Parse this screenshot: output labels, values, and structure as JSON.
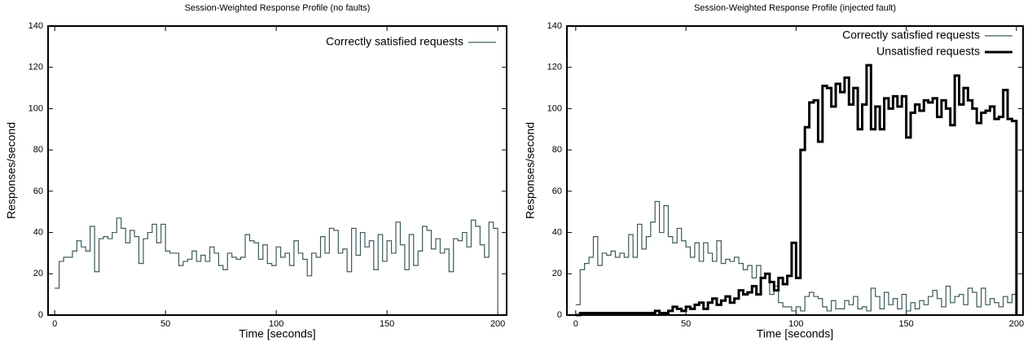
{
  "chart_data": [
    {
      "type": "line",
      "title": "Session-Weighted Response Profile (no faults)",
      "xlabel": "Time [seconds]",
      "ylabel": "Responses/second",
      "xlim": [
        -3,
        204
      ],
      "ylim": [
        0,
        140
      ],
      "xticks": [
        0,
        50,
        100,
        150,
        200
      ],
      "yticks": [
        0,
        20,
        40,
        60,
        80,
        100,
        120,
        140
      ],
      "legend": "upper right",
      "step": true,
      "x": [
        0,
        2,
        4,
        6,
        8,
        10,
        12,
        14,
        16,
        18,
        20,
        22,
        24,
        26,
        28,
        30,
        32,
        34,
        36,
        38,
        40,
        42,
        44,
        46,
        48,
        50,
        52,
        54,
        56,
        58,
        60,
        62,
        64,
        66,
        68,
        70,
        72,
        74,
        76,
        78,
        80,
        82,
        84,
        86,
        88,
        90,
        92,
        94,
        96,
        98,
        100,
        102,
        104,
        106,
        108,
        110,
        112,
        114,
        116,
        118,
        120,
        122,
        124,
        126,
        128,
        130,
        132,
        134,
        136,
        138,
        140,
        142,
        144,
        146,
        148,
        150,
        152,
        154,
        156,
        158,
        160,
        162,
        164,
        166,
        168,
        170,
        172,
        174,
        176,
        178,
        180,
        182,
        184,
        186,
        188,
        190,
        192,
        194,
        196,
        198,
        200
      ],
      "series": [
        {
          "name": "Correctly satisfied requests",
          "color": "#3d5a5a",
          "width": 1.2,
          "values": [
            13,
            26,
            28,
            28,
            31,
            36,
            33,
            31,
            43,
            21,
            37,
            38,
            37,
            40,
            47,
            42,
            35,
            41,
            38,
            25,
            37,
            40,
            44,
            35,
            44,
            31,
            30,
            30,
            24,
            26,
            27,
            31,
            26,
            29,
            26,
            33,
            30,
            24,
            22,
            30,
            28,
            27,
            28,
            39,
            36,
            35,
            27,
            34,
            25,
            24,
            33,
            28,
            30,
            24,
            36,
            30,
            27,
            19,
            30,
            28,
            38,
            30,
            42,
            41,
            30,
            32,
            21,
            42,
            29,
            40,
            33,
            36,
            22,
            39,
            26,
            36,
            30,
            45,
            34,
            22,
            39,
            24,
            31,
            43,
            41,
            32,
            37,
            30,
            32,
            21,
            37,
            36,
            40,
            33,
            46,
            43,
            34,
            28,
            45,
            42,
            0
          ]
        }
      ]
    },
    {
      "type": "line",
      "title": "Session-Weighted Response Profile (injected fault)",
      "xlabel": "Time [seconds]",
      "ylabel": "Responses/second",
      "xlim": [
        -4,
        203
      ],
      "ylim": [
        0,
        140
      ],
      "xticks": [
        0,
        50,
        100,
        150,
        200
      ],
      "yticks": [
        0,
        20,
        40,
        60,
        80,
        100,
        120,
        140
      ],
      "legend": "upper right",
      "step": true,
      "x": [
        0,
        2,
        4,
        6,
        8,
        10,
        12,
        14,
        16,
        18,
        20,
        22,
        24,
        26,
        28,
        30,
        32,
        34,
        36,
        38,
        40,
        42,
        44,
        46,
        48,
        50,
        52,
        54,
        56,
        58,
        60,
        62,
        64,
        66,
        68,
        70,
        72,
        74,
        76,
        78,
        80,
        82,
        84,
        86,
        88,
        90,
        92,
        94,
        96,
        98,
        100,
        102,
        104,
        106,
        108,
        110,
        112,
        114,
        116,
        118,
        120,
        122,
        124,
        126,
        128,
        130,
        132,
        134,
        136,
        138,
        140,
        142,
        144,
        146,
        148,
        150,
        152,
        154,
        156,
        158,
        160,
        162,
        164,
        166,
        168,
        170,
        172,
        174,
        176,
        178,
        180,
        182,
        184,
        186,
        188,
        190,
        192,
        194,
        196,
        198,
        200
      ],
      "series": [
        {
          "name": "Correctly satisfied requests",
          "color": "#3d5a5a",
          "width": 1.2,
          "values": [
            5,
            22,
            25,
            28,
            38,
            24,
            30,
            29,
            31,
            28,
            30,
            28,
            39,
            28,
            44,
            32,
            38,
            45,
            55,
            40,
            53,
            38,
            35,
            42,
            36,
            33,
            28,
            35,
            26,
            35,
            30,
            26,
            36,
            25,
            27,
            26,
            28,
            25,
            22,
            24,
            18,
            24,
            18,
            20,
            10,
            14,
            6,
            4,
            4,
            2,
            4,
            2,
            9,
            11,
            9,
            8,
            4,
            2,
            7,
            3,
            3,
            7,
            5,
            9,
            3,
            4,
            2,
            13,
            9,
            3,
            11,
            5,
            8,
            3,
            10,
            2,
            6,
            3,
            7,
            5,
            9,
            12,
            8,
            4,
            14,
            6,
            9,
            10,
            5,
            13,
            11,
            4,
            13,
            5,
            8,
            6,
            4,
            9,
            6,
            10,
            0
          ]
        },
        {
          "name": "Unsatisfied requests",
          "color": "#000000",
          "width": 3,
          "values": [
            0,
            1,
            1,
            1,
            1,
            1,
            1,
            1,
            1,
            1,
            1,
            1,
            1,
            1,
            1,
            1,
            1,
            1,
            2,
            1,
            1,
            2,
            4,
            3,
            2,
            4,
            3,
            5,
            6,
            3,
            6,
            8,
            5,
            7,
            9,
            6,
            8,
            12,
            10,
            11,
            14,
            10,
            18,
            20,
            16,
            12,
            18,
            15,
            19,
            35,
            18,
            80,
            91,
            103,
            104,
            84,
            111,
            110,
            101,
            112,
            108,
            115,
            102,
            110,
            90,
            102,
            121,
            90,
            101,
            90,
            105,
            100,
            106,
            101,
            106,
            86,
            98,
            102,
            99,
            104,
            103,
            105,
            96,
            104,
            100,
            92,
            116,
            102,
            110,
            104,
            100,
            93,
            98,
            99,
            101,
            95,
            96,
            109,
            95,
            94,
            0
          ]
        }
      ]
    }
  ]
}
